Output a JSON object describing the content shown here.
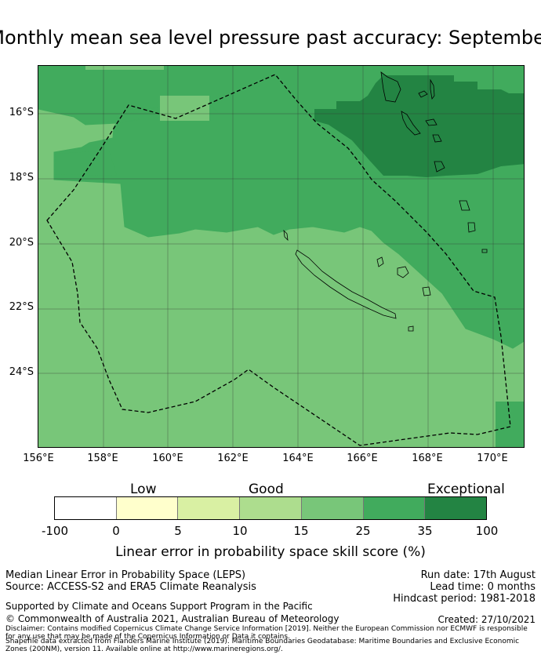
{
  "title": "Monthly mean sea level pressure past accuracy: September",
  "map": {
    "lat_labels": [
      "16°S",
      "18°S",
      "20°S",
      "22°S",
      "24°S"
    ],
    "lon_labels": [
      "156°E",
      "158°E",
      "160°E",
      "162°E",
      "164°E",
      "166°E",
      "168°E",
      "170°E"
    ],
    "colors": {
      "white": "#ffffff",
      "very_low": "#ffffcc",
      "low": "#d9f0a3",
      "fair": "#addd8e",
      "good": "#78c679",
      "very_good": "#41ab5d",
      "exceptional": "#238443"
    }
  },
  "colorbar": {
    "category_labels": [
      "Low",
      "Good",
      "Exceptional"
    ],
    "tick_labels": [
      "-100",
      "0",
      "5",
      "10",
      "15",
      "25",
      "35",
      "100"
    ],
    "colors": [
      "#ffffff",
      "#ffffcc",
      "#d9f0a3",
      "#addd8e",
      "#78c679",
      "#41ab5d",
      "#238443"
    ],
    "title": "Linear error in probability space skill score (%)"
  },
  "footer": {
    "left_line1": "Median Linear Error in Probability Space (LEPS)",
    "left_line2": "Source: ACCESS-S2 and ERA5 Climate Reanalysis",
    "right_line1": "Run date: 17th August",
    "right_line2": "Lead time: 0 months",
    "right_line3": "Hindcast period: 1981-2018",
    "supported": "Supported by Climate and Oceans Support Program in the Pacific",
    "copyright": "© Commonwealth of Australia 2021, Australian Bureau of Meteorology",
    "created": "Created: 27/10/2021",
    "disclaimer": "Disclaimer: Contains modified Copernicus Climate Change Service Information [2019]. Neither the European Commission nor ECMWF is responsible for any use that may be made of the Copernicus Information or Data it contains.",
    "shapefile": "Shapefile data extracted from Flanders Marine Institute (2019). Maritime Boundaries Geodatabase: Maritime Boundaries and Exclusive Economic Zones (200NM), version 11. Available online at http://www.marineregions.org/."
  }
}
